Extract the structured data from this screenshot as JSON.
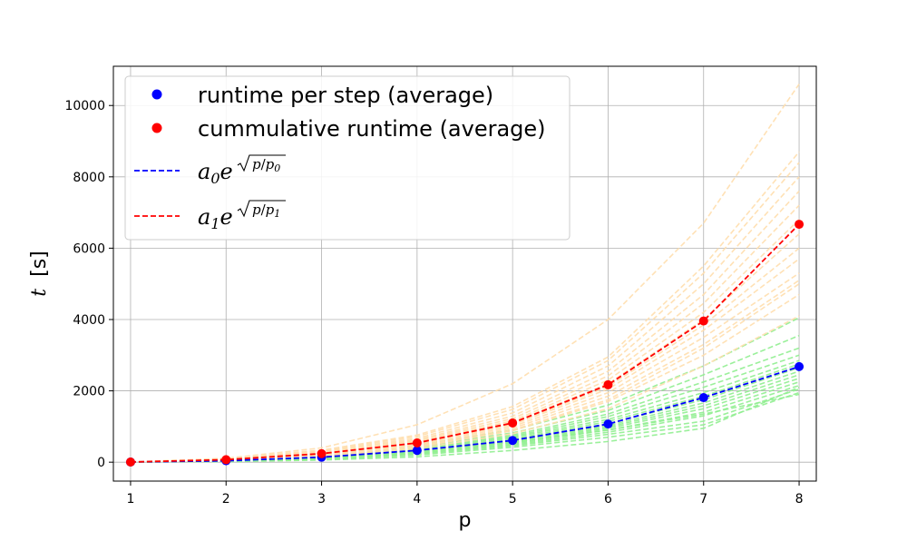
{
  "chart_data": {
    "type": "line",
    "xlabel": "p",
    "ylabel_var": "t",
    "ylabel_unit": "[s]",
    "xlim": [
      0.82,
      8.18
    ],
    "ylim": [
      -530,
      11100
    ],
    "xticks": [
      1,
      2,
      3,
      4,
      5,
      6,
      7,
      8
    ],
    "yticks": [
      0,
      2000,
      4000,
      6000,
      8000,
      10000
    ],
    "grid": true,
    "legend_placement": "top-left",
    "x": [
      1,
      2,
      3,
      4,
      5,
      6,
      7,
      8
    ],
    "series": [
      {
        "name": "runtime per step (average)",
        "color": "#0000ff",
        "marker": "circle",
        "values": [
          5,
          40,
          140,
          330,
          610,
          1070,
          1810,
          2680
        ]
      },
      {
        "name": "cummulative runtime (average)",
        "color": "#ff0000",
        "marker": "circle",
        "values": [
          5,
          70,
          240,
          540,
          1100,
          2170,
          3960,
          6670
        ]
      },
      {
        "name": "a0e^sqrt(p/p0)",
        "legend_base": "a",
        "legend_sub": "0",
        "legend_exp_base": "e",
        "legend_p": "p",
        "legend_p_sub": "0",
        "color": "#0000ff",
        "style": "dashed",
        "values": [
          5,
          40,
          140,
          330,
          610,
          1070,
          1810,
          2680
        ]
      },
      {
        "name": "a1e^sqrt(p/p1)",
        "legend_base": "a",
        "legend_sub": "1",
        "legend_exp_base": "e",
        "legend_p": "p",
        "legend_p_sub": "1",
        "color": "#ff0000",
        "style": "dashed",
        "values": [
          5,
          70,
          240,
          540,
          1100,
          2170,
          3960,
          6670
        ]
      }
    ],
    "background_runs": {
      "per_step": {
        "color": "#90ee90",
        "runs": [
          [
            5,
            20,
            80,
            200,
            420,
            700,
            1050,
            1950
          ],
          [
            5,
            25,
            90,
            230,
            460,
            780,
            1150,
            2050
          ],
          [
            5,
            30,
            100,
            250,
            490,
            840,
            1300,
            2150
          ],
          [
            5,
            30,
            110,
            270,
            520,
            900,
            1400,
            2250
          ],
          [
            5,
            35,
            120,
            290,
            550,
            950,
            1500,
            2350
          ],
          [
            5,
            35,
            125,
            300,
            570,
            990,
            1580,
            2450
          ],
          [
            5,
            40,
            130,
            320,
            600,
            1030,
            1660,
            2550
          ],
          [
            5,
            40,
            140,
            330,
            620,
            1080,
            1750,
            2650
          ],
          [
            5,
            45,
            150,
            350,
            650,
            1140,
            1850,
            2750
          ],
          [
            5,
            45,
            160,
            370,
            690,
            1200,
            1950,
            2850
          ],
          [
            5,
            50,
            170,
            390,
            720,
            1280,
            2100,
            3000
          ],
          [
            5,
            55,
            180,
            410,
            760,
            1350,
            2250,
            3200
          ],
          [
            5,
            60,
            200,
            440,
            820,
            1450,
            2450,
            3550
          ],
          [
            5,
            65,
            220,
            480,
            900,
            1600,
            2700,
            4050
          ],
          [
            5,
            15,
            60,
            150,
            330,
            580,
            950,
            2100
          ],
          [
            5,
            50,
            160,
            340,
            560,
            900,
            1350,
            1900
          ]
        ]
      },
      "cumulative": {
        "color": "#ffdead",
        "runs": [
          [
            5,
            50,
            160,
            380,
            800,
            1500,
            2700,
            4100
          ],
          [
            5,
            55,
            180,
            420,
            880,
            1700,
            3000,
            4700
          ],
          [
            5,
            60,
            200,
            460,
            950,
            1850,
            3300,
            5100
          ],
          [
            5,
            65,
            210,
            490,
            1000,
            1950,
            3500,
            5300
          ],
          [
            5,
            65,
            220,
            510,
            1050,
            2050,
            3700,
            5700
          ],
          [
            5,
            70,
            230,
            530,
            1080,
            2120,
            3850,
            6000
          ],
          [
            5,
            70,
            240,
            550,
            1120,
            2200,
            4000,
            6400
          ],
          [
            5,
            75,
            250,
            570,
            1160,
            2300,
            4200,
            6800
          ],
          [
            5,
            75,
            260,
            600,
            1220,
            2420,
            4450,
            7200
          ],
          [
            5,
            80,
            280,
            630,
            1290,
            2550,
            4700,
            7600
          ],
          [
            5,
            85,
            300,
            670,
            1380,
            2700,
            5000,
            8000
          ],
          [
            5,
            90,
            320,
            720,
            1480,
            2850,
            5300,
            8400
          ],
          [
            5,
            95,
            340,
            760,
            1560,
            2950,
            5500,
            8700
          ],
          [
            5,
            110,
            400,
            1050,
            2200,
            4000,
            6700,
            10600
          ],
          [
            5,
            60,
            190,
            430,
            900,
            1750,
            3200,
            5000
          ]
        ]
      }
    }
  }
}
